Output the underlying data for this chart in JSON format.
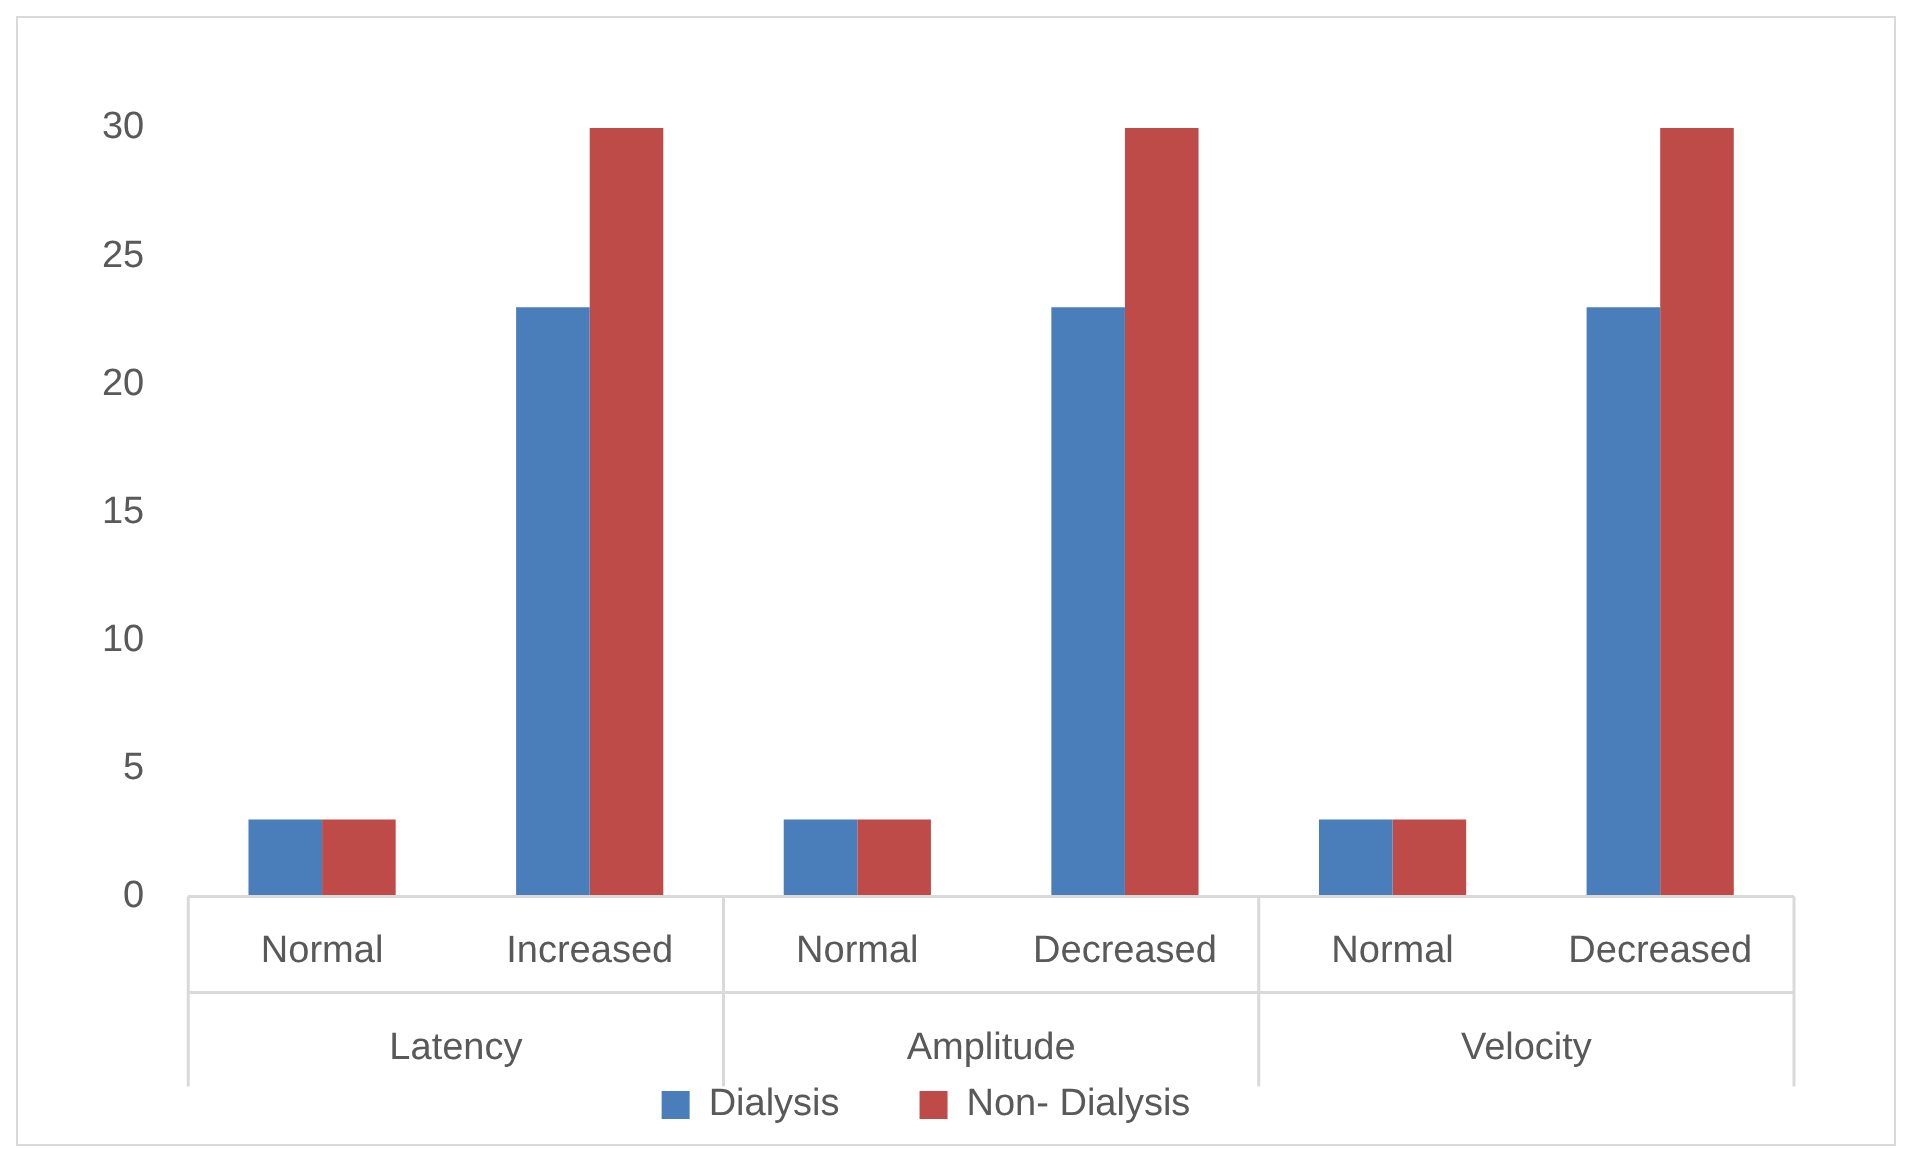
{
  "chart_data": {
    "type": "bar",
    "categories": [
      "Normal",
      "Increased",
      "Normal",
      "Decreased",
      "Normal",
      "Decreased"
    ],
    "series": [
      {
        "name": "Dialysis",
        "color": "#4a7ebb",
        "values": [
          3,
          23,
          3,
          23,
          3,
          23
        ]
      },
      {
        "name": "Non- Dialysis",
        "color": "#be4b48",
        "values": [
          3,
          30,
          3,
          30,
          3,
          30
        ]
      }
    ],
    "ylim": [
      0,
      30
    ],
    "yticks": [
      0,
      5,
      10,
      15,
      20,
      25,
      30
    ],
    "grid": false,
    "legend": "bottom",
    "annotations": [
      "Latency",
      "Amplitude",
      "Velocity"
    ]
  }
}
